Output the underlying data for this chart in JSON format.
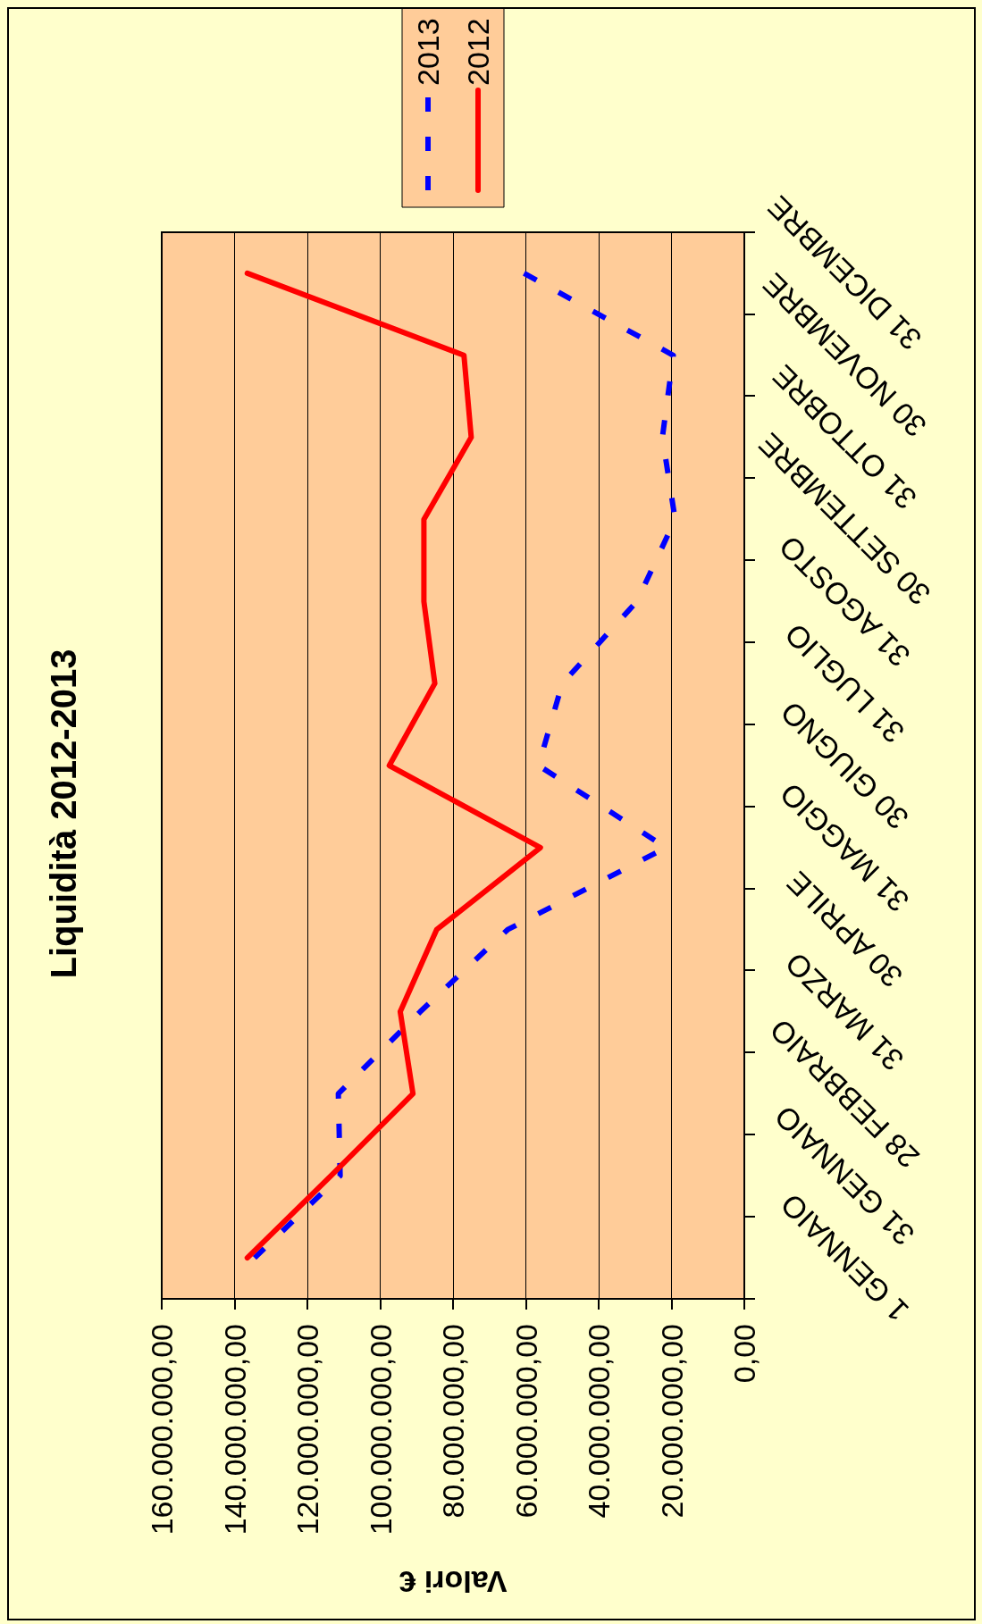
{
  "chart_data": {
    "type": "line",
    "orientation": "horizontal",
    "title": "Liquidità 2012-2013",
    "xlabel": "Valori €",
    "categories": [
      "31 DICEMBRE",
      "30 NOVEMBRE",
      "31 OTTOBRE",
      "30 SETTEMBRE",
      "31 AGOSTO",
      "31 LUGLIO",
      "30 GIUGNO",
      "31 MAGGIO",
      "30 APRILE",
      "31 MARZO",
      "28 FEBBRAIO",
      "31 GENNAIO",
      "1 GENNAIO"
    ],
    "series": [
      {
        "name": "2013",
        "color": "#0000ff",
        "line_style": "dashed",
        "values": [
          60500000,
          19500000,
          22500000,
          19000000,
          29500000,
          50000000,
          56500000,
          21500000,
          65000000,
          89000000,
          111500000,
          111000000,
          134500000
        ]
      },
      {
        "name": "2012",
        "color": "#ff0000",
        "line_style": "solid",
        "values": [
          136500000,
          77000000,
          75000000,
          88000000,
          88000000,
          85000000,
          97500000,
          56000000,
          84500000,
          94500000,
          91000000,
          113500000,
          136500000
        ]
      }
    ],
    "xlim": [
      160000000,
      0
    ],
    "xticks": [
      {
        "value": 0,
        "label": "0,00"
      },
      {
        "value": 20000000,
        "label": "20.000.000,00"
      },
      {
        "value": 40000000,
        "label": "40.000.000,00"
      },
      {
        "value": 60000000,
        "label": "60.000.000,00"
      },
      {
        "value": 80000000,
        "label": "80.000.000,00"
      },
      {
        "value": 100000000,
        "label": "100.000.000,00"
      },
      {
        "value": 120000000,
        "label": "120.000.000,00"
      },
      {
        "value": 140000000,
        "label": "140.000.000,00"
      },
      {
        "value": 160000000,
        "label": "160.000.000,00"
      }
    ],
    "grid": "x",
    "legend": "top",
    "marker": "none"
  }
}
